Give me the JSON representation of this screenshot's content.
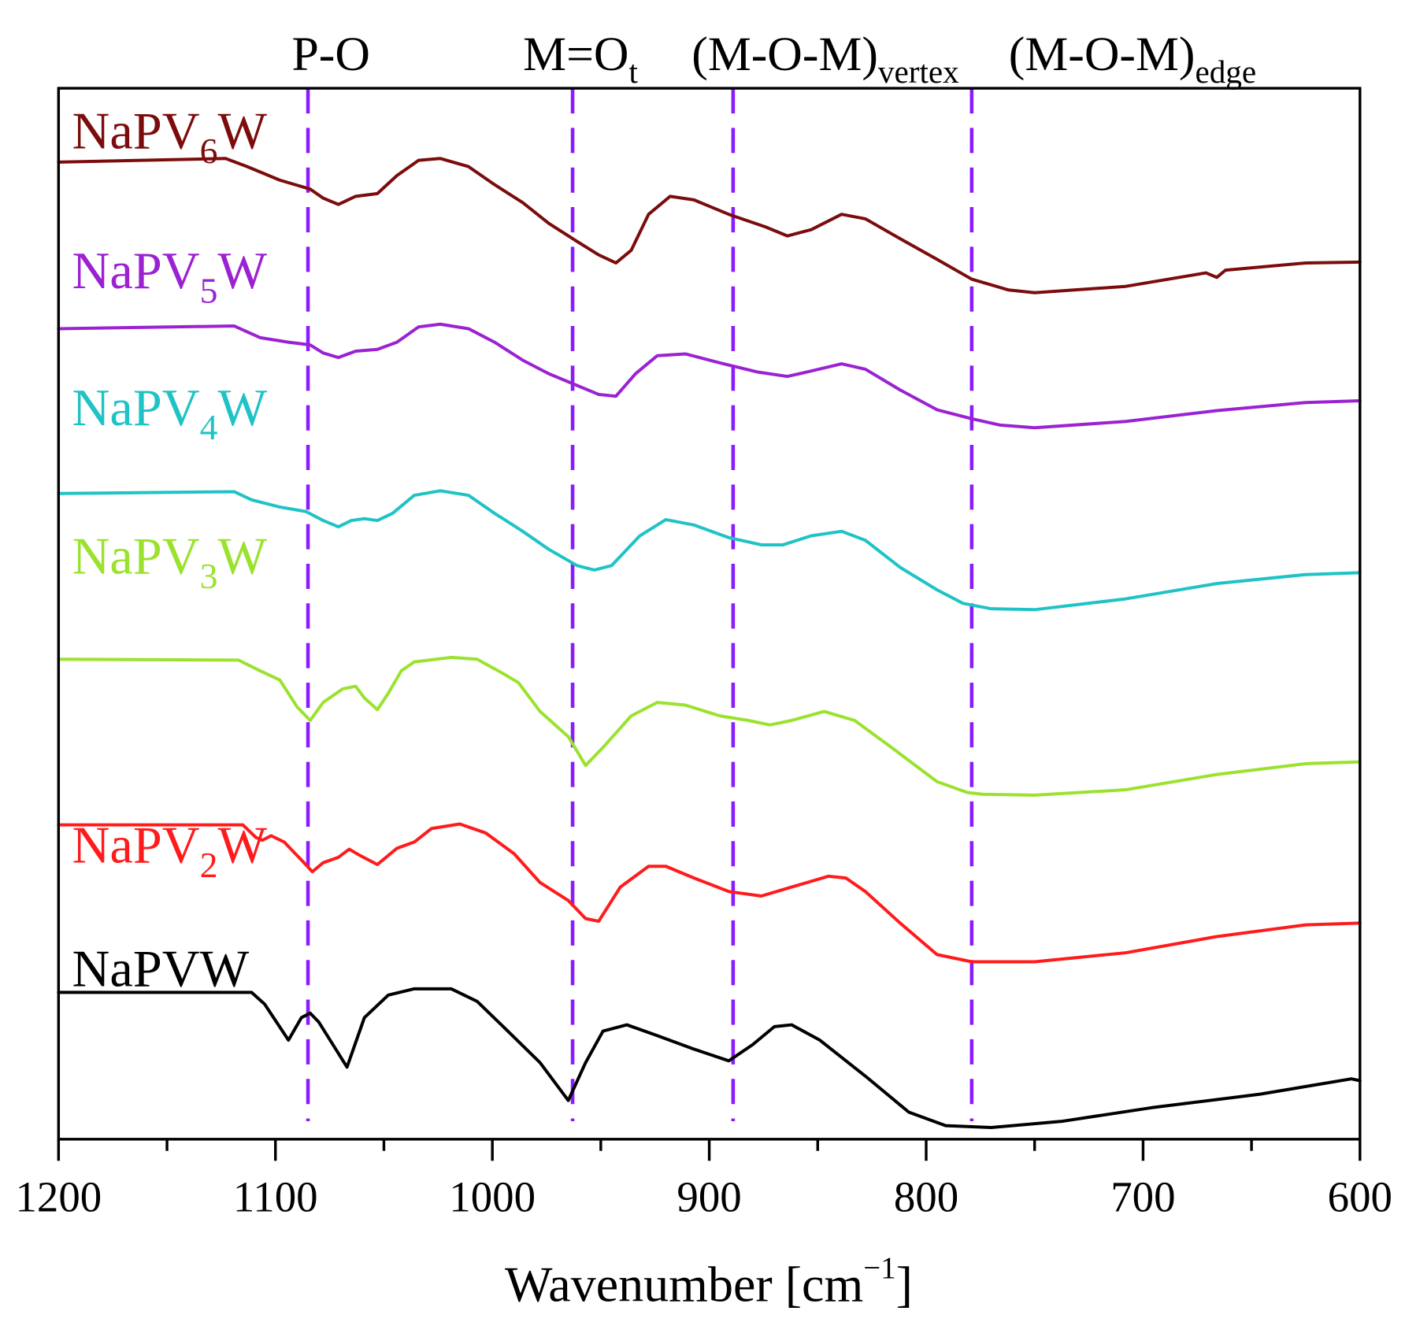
{
  "chart_data": {
    "type": "line",
    "title": "",
    "xlabel": {
      "main": "Wavenumber [cm",
      "sup": "−1",
      "close": "]"
    },
    "ylabel": "",
    "xlim": [
      1200,
      600
    ],
    "ylim": [
      0,
      116.7
    ],
    "x_ticks": [
      1200,
      1100,
      1000,
      900,
      800,
      700,
      600
    ],
    "x_minor_ticks": [
      1150,
      1050,
      950,
      850,
      750,
      650
    ],
    "grid": false,
    "y_units": "arbitrary (stacked, offset)",
    "band_markers": {
      "color": "#8a1cff",
      "items": [
        {
          "x": 1085,
          "label": "P-O",
          "sub": ""
        },
        {
          "x": 963,
          "label": "M=O",
          "sub": "t"
        },
        {
          "x": 889,
          "label": "(M-O-M)",
          "sub": "vertex"
        },
        {
          "x": 779,
          "label": "(M-O-M)",
          "sub": "edge"
        }
      ]
    },
    "series": [
      {
        "prefix": "NaPV",
        "sub": "6",
        "suffix": "W",
        "color": "#7b0c0c",
        "label_y": 112,
        "points": [
          [
            1200,
            108.5
          ],
          [
            1123,
            108.9
          ],
          [
            1113,
            108.0
          ],
          [
            1098,
            106.5
          ],
          [
            1084,
            105.5
          ],
          [
            1078,
            104.5
          ],
          [
            1071,
            103.8
          ],
          [
            1063,
            104.7
          ],
          [
            1053,
            105.0
          ],
          [
            1044,
            107.0
          ],
          [
            1034,
            108.7
          ],
          [
            1024,
            108.9
          ],
          [
            1011,
            108.0
          ],
          [
            999,
            106.0
          ],
          [
            986,
            104.0
          ],
          [
            974,
            101.7
          ],
          [
            961,
            99.7
          ],
          [
            951,
            98.2
          ],
          [
            943,
            97.3
          ],
          [
            936,
            98.7
          ],
          [
            928,
            102.7
          ],
          [
            918,
            104.7
          ],
          [
            907,
            104.3
          ],
          [
            891,
            102.7
          ],
          [
            874,
            101.3
          ],
          [
            864,
            100.3
          ],
          [
            853,
            101.0
          ],
          [
            839,
            102.7
          ],
          [
            828,
            102.2
          ],
          [
            812,
            100.0
          ],
          [
            795,
            97.7
          ],
          [
            779,
            95.5
          ],
          [
            762,
            94.3
          ],
          [
            750,
            94.0
          ],
          [
            708,
            94.7
          ],
          [
            671,
            96.2
          ],
          [
            666,
            95.7
          ],
          [
            662,
            96.5
          ],
          [
            625,
            97.3
          ],
          [
            600,
            97.4
          ]
        ]
      },
      {
        "prefix": "NaPV",
        "sub": "5",
        "suffix": "W",
        "color": "#9b22d2",
        "label_y": 96.5,
        "points": [
          [
            1200,
            90.0
          ],
          [
            1119,
            90.3
          ],
          [
            1107,
            89.0
          ],
          [
            1094,
            88.5
          ],
          [
            1084,
            88.2
          ],
          [
            1078,
            87.3
          ],
          [
            1071,
            86.8
          ],
          [
            1063,
            87.5
          ],
          [
            1053,
            87.7
          ],
          [
            1044,
            88.5
          ],
          [
            1034,
            90.2
          ],
          [
            1024,
            90.5
          ],
          [
            1011,
            90.0
          ],
          [
            999,
            88.5
          ],
          [
            986,
            86.5
          ],
          [
            974,
            85.0
          ],
          [
            961,
            83.7
          ],
          [
            951,
            82.7
          ],
          [
            943,
            82.5
          ],
          [
            934,
            85.0
          ],
          [
            924,
            87.0
          ],
          [
            911,
            87.2
          ],
          [
            895,
            86.2
          ],
          [
            878,
            85.2
          ],
          [
            864,
            84.7
          ],
          [
            853,
            85.3
          ],
          [
            839,
            86.1
          ],
          [
            828,
            85.5
          ],
          [
            812,
            83.2
          ],
          [
            795,
            81.0
          ],
          [
            779,
            80.0
          ],
          [
            766,
            79.3
          ],
          [
            750,
            79.0
          ],
          [
            708,
            79.7
          ],
          [
            666,
            80.9
          ],
          [
            625,
            81.8
          ],
          [
            600,
            82.0
          ]
        ]
      },
      {
        "prefix": "NaPV",
        "sub": "4",
        "suffix": "W",
        "color": "#1fc3c6",
        "label_y": 81.3,
        "points": [
          [
            1200,
            71.7
          ],
          [
            1119,
            71.9
          ],
          [
            1111,
            71.0
          ],
          [
            1098,
            70.2
          ],
          [
            1086,
            69.7
          ],
          [
            1078,
            68.7
          ],
          [
            1071,
            68.0
          ],
          [
            1065,
            68.7
          ],
          [
            1059,
            68.9
          ],
          [
            1053,
            68.7
          ],
          [
            1046,
            69.5
          ],
          [
            1036,
            71.5
          ],
          [
            1024,
            72.0
          ],
          [
            1011,
            71.5
          ],
          [
            999,
            69.5
          ],
          [
            986,
            67.5
          ],
          [
            974,
            65.5
          ],
          [
            961,
            63.7
          ],
          [
            953,
            63.2
          ],
          [
            945,
            63.7
          ],
          [
            932,
            67.0
          ],
          [
            920,
            68.8
          ],
          [
            907,
            68.2
          ],
          [
            891,
            66.8
          ],
          [
            876,
            66.0
          ],
          [
            866,
            66.0
          ],
          [
            853,
            67.0
          ],
          [
            839,
            67.5
          ],
          [
            828,
            66.5
          ],
          [
            812,
            63.5
          ],
          [
            795,
            61.0
          ],
          [
            783,
            59.5
          ],
          [
            770,
            58.9
          ],
          [
            750,
            58.8
          ],
          [
            708,
            60.0
          ],
          [
            666,
            61.7
          ],
          [
            625,
            62.7
          ],
          [
            600,
            62.9
          ]
        ]
      },
      {
        "prefix": "NaPV",
        "sub": "3",
        "suffix": "W",
        "color": "#9be22f",
        "label_y": 64.8,
        "points": [
          [
            1200,
            53.3
          ],
          [
            1117,
            53.2
          ],
          [
            1107,
            52.0
          ],
          [
            1098,
            51.0
          ],
          [
            1090,
            48.0
          ],
          [
            1084,
            46.5
          ],
          [
            1078,
            48.5
          ],
          [
            1069,
            50.0
          ],
          [
            1063,
            50.3
          ],
          [
            1059,
            49.0
          ],
          [
            1053,
            47.7
          ],
          [
            1048,
            49.5
          ],
          [
            1042,
            52.0
          ],
          [
            1036,
            53.0
          ],
          [
            1019,
            53.5
          ],
          [
            1007,
            53.3
          ],
          [
            995,
            51.7
          ],
          [
            988,
            50.7
          ],
          [
            978,
            47.5
          ],
          [
            965,
            44.7
          ],
          [
            957,
            41.5
          ],
          [
            949,
            43.5
          ],
          [
            936,
            47.0
          ],
          [
            924,
            48.5
          ],
          [
            911,
            48.2
          ],
          [
            895,
            47.0
          ],
          [
            882,
            46.5
          ],
          [
            872,
            46.0
          ],
          [
            862,
            46.5
          ],
          [
            847,
            47.5
          ],
          [
            833,
            46.5
          ],
          [
            816,
            43.5
          ],
          [
            795,
            39.7
          ],
          [
            781,
            38.5
          ],
          [
            774,
            38.3
          ],
          [
            750,
            38.2
          ],
          [
            708,
            38.8
          ],
          [
            666,
            40.5
          ],
          [
            625,
            41.7
          ],
          [
            600,
            41.9
          ]
        ]
      },
      {
        "prefix": "NaPV",
        "sub": "2",
        "suffix": "W",
        "color": "#ff1b1b",
        "label_y": 32.7,
        "points": [
          [
            1200,
            34.9
          ],
          [
            1115,
            34.9
          ],
          [
            1109,
            33.5
          ],
          [
            1106,
            33.2
          ],
          [
            1102,
            33.7
          ],
          [
            1096,
            33.0
          ],
          [
            1088,
            31.0
          ],
          [
            1083,
            29.7
          ],
          [
            1078,
            30.7
          ],
          [
            1071,
            31.3
          ],
          [
            1066,
            32.2
          ],
          [
            1061,
            31.5
          ],
          [
            1053,
            30.5
          ],
          [
            1044,
            32.3
          ],
          [
            1036,
            33.0
          ],
          [
            1028,
            34.5
          ],
          [
            1015,
            35.0
          ],
          [
            1003,
            34.0
          ],
          [
            990,
            31.7
          ],
          [
            978,
            28.5
          ],
          [
            965,
            26.5
          ],
          [
            957,
            24.5
          ],
          [
            951,
            24.2
          ],
          [
            941,
            28.0
          ],
          [
            928,
            30.3
          ],
          [
            920,
            30.3
          ],
          [
            907,
            29.0
          ],
          [
            891,
            27.5
          ],
          [
            876,
            27.0
          ],
          [
            862,
            28.0
          ],
          [
            845,
            29.2
          ],
          [
            837,
            29.0
          ],
          [
            828,
            27.5
          ],
          [
            812,
            24.0
          ],
          [
            795,
            20.5
          ],
          [
            779,
            19.7
          ],
          [
            750,
            19.7
          ],
          [
            708,
            20.7
          ],
          [
            666,
            22.5
          ],
          [
            625,
            23.8
          ],
          [
            600,
            24.0
          ]
        ]
      },
      {
        "prefix": "NaPVW",
        "sub": "",
        "suffix": "",
        "color": "#000000",
        "label_y": 19.0,
        "points": [
          [
            1200,
            16.3
          ],
          [
            1111,
            16.3
          ],
          [
            1105,
            15.0
          ],
          [
            1094,
            11.0
          ],
          [
            1088,
            13.5
          ],
          [
            1084,
            14.0
          ],
          [
            1080,
            13.0
          ],
          [
            1067,
            8.0
          ],
          [
            1059,
            13.5
          ],
          [
            1048,
            16.0
          ],
          [
            1036,
            16.7
          ],
          [
            1019,
            16.7
          ],
          [
            1007,
            15.3
          ],
          [
            995,
            12.5
          ],
          [
            978,
            8.5
          ],
          [
            965,
            4.3
          ],
          [
            957,
            8.5
          ],
          [
            949,
            12.0
          ],
          [
            938,
            12.7
          ],
          [
            924,
            11.5
          ],
          [
            907,
            10.0
          ],
          [
            891,
            8.7
          ],
          [
            880,
            10.5
          ],
          [
            870,
            12.5
          ],
          [
            862,
            12.7
          ],
          [
            849,
            11.0
          ],
          [
            828,
            7.0
          ],
          [
            808,
            3.0
          ],
          [
            791,
            1.5
          ],
          [
            770,
            1.3
          ],
          [
            737,
            2.0
          ],
          [
            696,
            3.5
          ],
          [
            646,
            5.0
          ],
          [
            604,
            6.7
          ],
          [
            600,
            6.5
          ]
        ]
      }
    ]
  }
}
